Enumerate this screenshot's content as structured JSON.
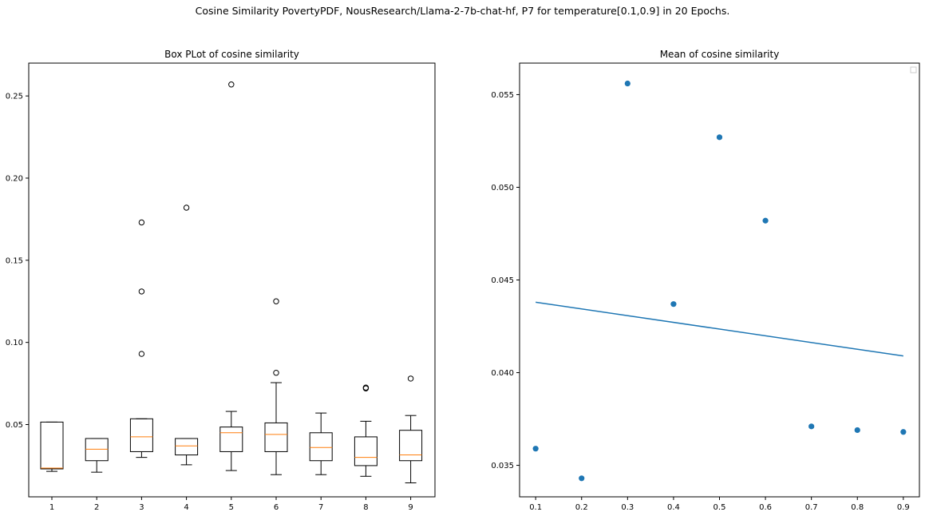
{
  "figure_title": "Cosine Similarity PovertyPDF, NousResearch/Llama-2-7b-chat-hf, P7 for temperature[0.1,0.9] in 20 Epochs.",
  "chart_data": [
    {
      "type": "box",
      "title": "Box PLot of cosine similarity",
      "categories": [
        "1",
        "2",
        "3",
        "4",
        "5",
        "6",
        "7",
        "8",
        "9"
      ],
      "ylim": [
        0.006,
        0.27
      ],
      "yticks": [
        0.05,
        0.1,
        0.15,
        0.2,
        0.25
      ],
      "ytick_labels": [
        "0.05",
        "0.10",
        "0.15",
        "0.20",
        "0.25"
      ],
      "box_color": "#000000",
      "median_color": "#ff7f0e",
      "boxes": [
        {
          "label": "1",
          "whisker_low": 0.0215,
          "q1": 0.023,
          "median": 0.0235,
          "q3": 0.0515,
          "whisker_high": 0.0515,
          "outliers": []
        },
        {
          "label": "2",
          "whisker_low": 0.021,
          "q1": 0.028,
          "median": 0.035,
          "q3": 0.0415,
          "whisker_high": 0.0415,
          "outliers": []
        },
        {
          "label": "3",
          "whisker_low": 0.03,
          "q1": 0.0335,
          "median": 0.0425,
          "q3": 0.0535,
          "whisker_high": 0.0535,
          "outliers": [
            0.093,
            0.131,
            0.173
          ]
        },
        {
          "label": "4",
          "whisker_low": 0.0255,
          "q1": 0.0315,
          "median": 0.037,
          "q3": 0.0415,
          "whisker_high": 0.0415,
          "outliers": [
            0.182
          ]
        },
        {
          "label": "5",
          "whisker_low": 0.022,
          "q1": 0.0335,
          "median": 0.045,
          "q3": 0.0485,
          "whisker_high": 0.058,
          "outliers": [
            0.257
          ]
        },
        {
          "label": "6",
          "whisker_low": 0.0195,
          "q1": 0.0335,
          "median": 0.044,
          "q3": 0.051,
          "whisker_high": 0.0755,
          "outliers": [
            0.0815,
            0.125
          ]
        },
        {
          "label": "7",
          "whisker_low": 0.0195,
          "q1": 0.028,
          "median": 0.036,
          "q3": 0.045,
          "whisker_high": 0.057,
          "outliers": []
        },
        {
          "label": "8",
          "whisker_low": 0.0185,
          "q1": 0.025,
          "median": 0.03,
          "q3": 0.0425,
          "whisker_high": 0.052,
          "outliers": [
            0.072,
            0.0725
          ]
        },
        {
          "label": "9",
          "whisker_low": 0.0145,
          "q1": 0.028,
          "median": 0.0315,
          "q3": 0.0465,
          "whisker_high": 0.0555,
          "outliers": [
            0.078
          ]
        }
      ]
    },
    {
      "type": "scatter",
      "title": "Mean of cosine similarity",
      "xlim": [
        0.065,
        0.935
      ],
      "ylim": [
        0.0333,
        0.0567
      ],
      "xticks": [
        0.1,
        0.2,
        0.3,
        0.4,
        0.5,
        0.6,
        0.7,
        0.8,
        0.9
      ],
      "xtick_labels": [
        "0.1",
        "0.2",
        "0.3",
        "0.4",
        "0.5",
        "0.6",
        "0.7",
        "0.8",
        "0.9"
      ],
      "yticks": [
        0.035,
        0.04,
        0.045,
        0.05,
        0.055
      ],
      "ytick_labels": [
        "0.035",
        "0.040",
        "0.045",
        "0.050",
        "0.055"
      ],
      "color": "#1f77b4",
      "x": [
        0.1,
        0.2,
        0.3,
        0.4,
        0.5,
        0.6,
        0.7,
        0.8,
        0.9
      ],
      "y": [
        0.0359,
        0.0343,
        0.0556,
        0.0437,
        0.0527,
        0.0482,
        0.0371,
        0.0369,
        0.0368
      ],
      "trend_line": {
        "x": [
          0.1,
          0.9
        ],
        "y": [
          0.0438,
          0.0409
        ]
      },
      "legend": "top-right"
    }
  ]
}
